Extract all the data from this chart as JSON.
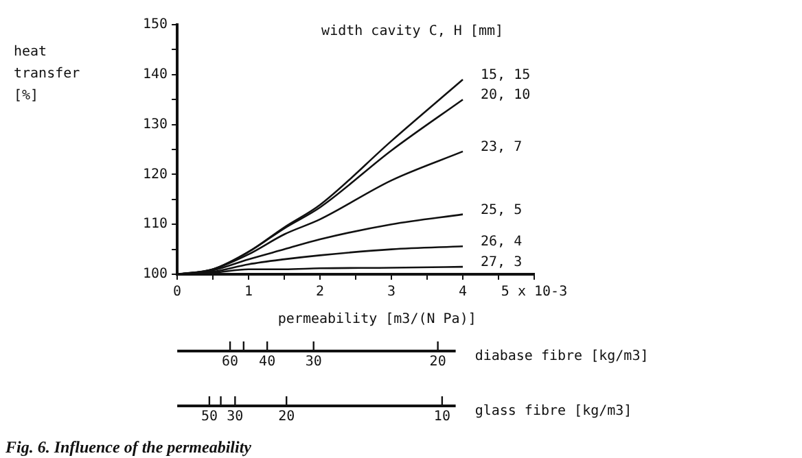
{
  "chart_data": {
    "type": "line",
    "ylabel": "heat transfer [%]",
    "xlabel": "permeability [m3/(N Pa)]",
    "legend_title": "width cavity C, H [mm]",
    "x": [
      0,
      0.5,
      1,
      1.5,
      2,
      3,
      4
    ],
    "series": [
      {
        "name": "15, 15",
        "color": "#111111",
        "values": [
          100,
          101,
          104.5,
          109.4,
          113.9,
          126.7,
          139
        ]
      },
      {
        "name": "20, 10",
        "color": "#111111",
        "values": [
          100,
          101,
          104.5,
          109.2,
          113.4,
          124.8,
          135
        ]
      },
      {
        "name": "23, 7",
        "color": "#111111",
        "values": [
          100,
          101,
          104,
          108,
          111,
          118.8,
          124.6
        ]
      },
      {
        "name": "25, 5",
        "color": "#111111",
        "values": [
          100,
          100.8,
          103,
          105,
          107,
          110,
          112
        ]
      },
      {
        "name": "26, 4",
        "color": "#111111",
        "values": [
          100,
          100.5,
          102,
          103,
          103.8,
          105,
          105.6
        ]
      },
      {
        "name": "27, 3",
        "color": "#111111",
        "values": [
          100,
          100.3,
          101,
          101,
          101.2,
          101.3,
          101.5
        ]
      }
    ],
    "xlim": [
      0,
      5
    ],
    "xticks": [
      0,
      {
        "value": 0.5,
        "label": null
      },
      1,
      {
        "value": 1.5,
        "label": null
      },
      2,
      {
        "value": 2.5,
        "label": null
      },
      3,
      {
        "value": 3.5,
        "label": null
      },
      4,
      {
        "value": 4.5,
        "label": null
      },
      {
        "value": 5,
        "label": "5 x 10-3"
      }
    ],
    "ylim": [
      100,
      150
    ],
    "yticks": [
      100,
      {
        "value": 105,
        "label": null
      },
      110,
      {
        "value": 115,
        "label": null
      },
      120,
      {
        "value": 125,
        "label": null
      },
      130,
      {
        "value": 135,
        "label": null
      },
      140,
      {
        "value": 145,
        "label": null
      },
      150
    ],
    "annotations": [
      "Fig. 6. Influence of the permeability",
      "diabase fibre [kg/m3]",
      "60",
      "40",
      "30",
      "20",
      "glass fibre [kg/m3]",
      "50",
      "30",
      "20",
      "10"
    ],
    "grid": false,
    "legend": false,
    "marker": "none",
    "line_style": "solid"
  }
}
